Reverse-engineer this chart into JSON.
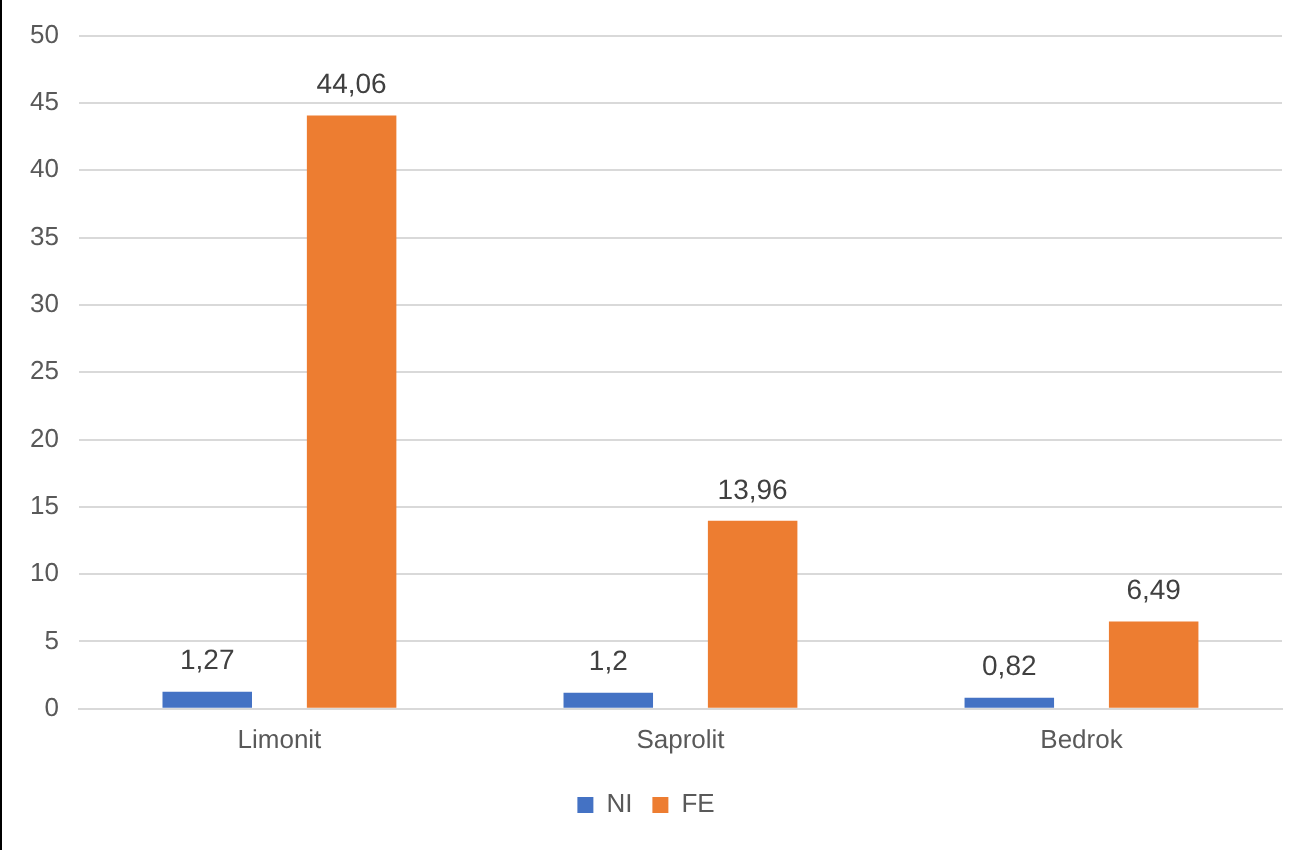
{
  "chart_data": {
    "type": "bar",
    "categories": [
      "Limonit",
      "Saprolit",
      "Bedrok"
    ],
    "series": [
      {
        "name": "NI",
        "color": "#4472c4",
        "values": [
          1.27,
          1.2,
          0.82
        ],
        "value_labels": [
          "1,27",
          "1,2",
          "0,82"
        ]
      },
      {
        "name": "FE",
        "color": "#ed7d31",
        "values": [
          44.06,
          13.96,
          6.49
        ],
        "value_labels": [
          "44,06",
          "13,96",
          "6,49"
        ]
      }
    ],
    "ylim": [
      0,
      50
    ],
    "yticks": [
      0,
      5,
      10,
      15,
      20,
      25,
      30,
      35,
      40,
      45,
      50
    ],
    "grid": "y",
    "legend": "bottom"
  }
}
